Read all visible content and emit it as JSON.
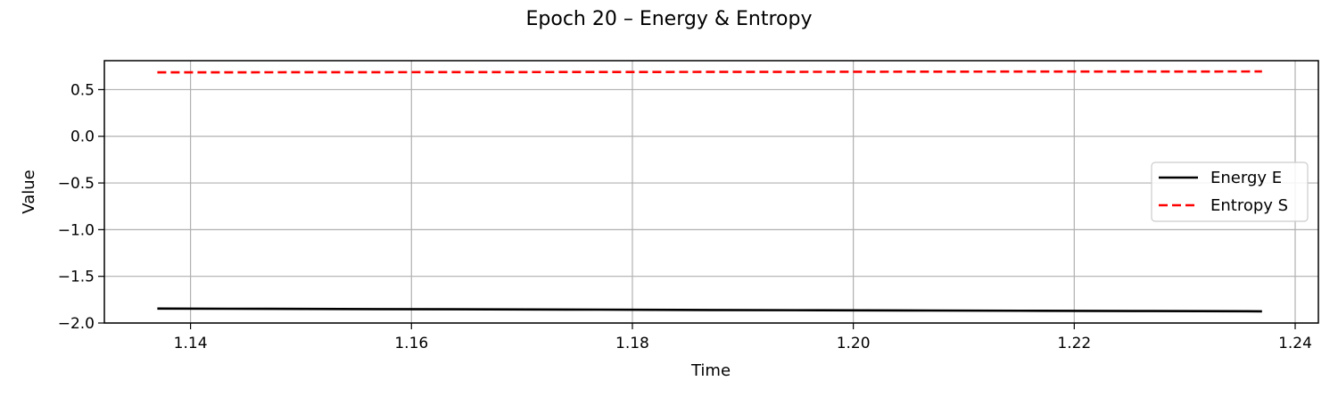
{
  "chart_data": {
    "type": "line",
    "title": "Epoch 20 – Energy & Entropy",
    "xlabel": "Time",
    "ylabel": "Value",
    "xlim": [
      1.1322,
      1.2421
    ],
    "ylim": [
      -2.0,
      0.81
    ],
    "xticks": [
      1.14,
      1.16,
      1.18,
      1.2,
      1.22,
      1.24
    ],
    "xtick_labels": [
      "1.14",
      "1.16",
      "1.18",
      "1.20",
      "1.22",
      "1.24"
    ],
    "yticks": [
      -2.0,
      -1.5,
      -1.0,
      -0.5,
      0.0,
      0.5
    ],
    "ytick_labels": [
      "−2.0",
      "−1.5",
      "−1.0",
      "−0.5",
      "0.0",
      "0.5"
    ],
    "grid": true,
    "legend_position": "center-right",
    "x": [
      1.137,
      1.147,
      1.157,
      1.167,
      1.177,
      1.187,
      1.197,
      1.207,
      1.217,
      1.227,
      1.237
    ],
    "series": [
      {
        "name": "Energy E",
        "color": "#000000",
        "style": "solid",
        "values": [
          -1.845,
          -1.848,
          -1.851,
          -1.854,
          -1.857,
          -1.86,
          -1.863,
          -1.866,
          -1.869,
          -1.872,
          -1.875
        ]
      },
      {
        "name": "Entropy S",
        "color": "#ff0000",
        "style": "dashed",
        "values": [
          0.685,
          0.686,
          0.687,
          0.688,
          0.689,
          0.69,
          0.691,
          0.692,
          0.693,
          0.693,
          0.694
        ]
      }
    ]
  }
}
